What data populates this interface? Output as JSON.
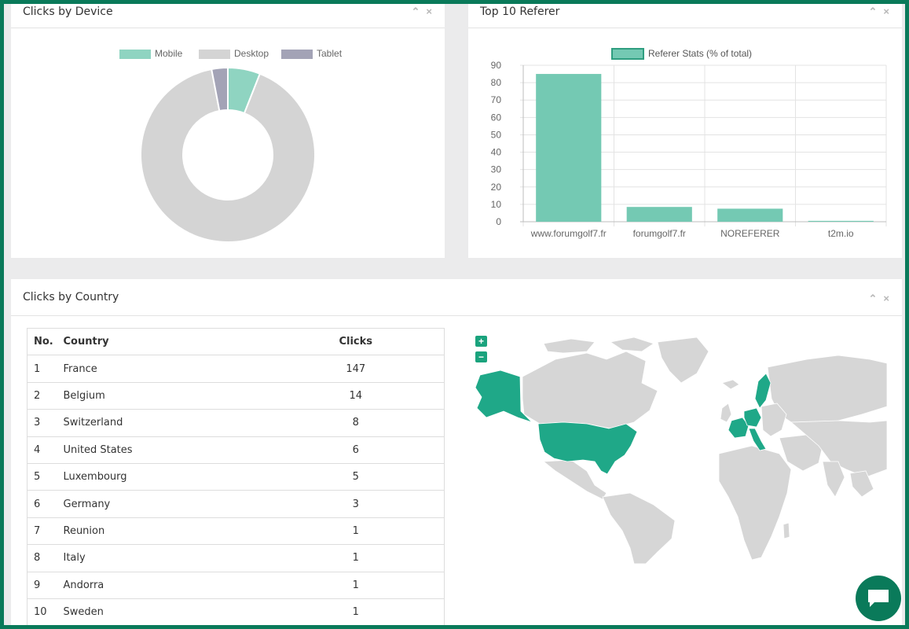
{
  "device_panel": {
    "title": "Clicks by Device",
    "chart_data": {
      "type": "pie",
      "title": "",
      "categories": [
        "Mobile",
        "Desktop",
        "Tablet"
      ],
      "values": [
        6,
        91,
        3
      ],
      "colors": [
        "#8fd4c1",
        "#d4d4d4",
        "#a3a3b6"
      ],
      "donut": true,
      "legend_position": "top"
    }
  },
  "referer_panel": {
    "title": "Top 10 Referer",
    "chart_data": {
      "type": "bar",
      "title": "",
      "categories": [
        "www.forumgolf7.fr",
        "forumgolf7.fr",
        "NOREFERER",
        "t2m.io"
      ],
      "series": [
        {
          "name": "Referer Stats (% of total)",
          "values": [
            85,
            8.5,
            7.5,
            0.5
          ]
        }
      ],
      "yticks": [
        "0",
        "10",
        "20",
        "30",
        "40",
        "50",
        "60",
        "70",
        "80",
        "90"
      ],
      "ylim": [
        0,
        90
      ],
      "xlabel": "",
      "ylabel": "",
      "grid": true,
      "legend_position": "top",
      "bar_color": "#74c9b3"
    }
  },
  "country_panel": {
    "title": "Clicks by Country",
    "table": {
      "headers": [
        "No.",
        "Country",
        "Clicks"
      ],
      "rows": [
        [
          "1",
          "France",
          "147"
        ],
        [
          "2",
          "Belgium",
          "14"
        ],
        [
          "3",
          "Switzerland",
          "8"
        ],
        [
          "4",
          "United States",
          "6"
        ],
        [
          "5",
          "Luxembourg",
          "5"
        ],
        [
          "6",
          "Germany",
          "3"
        ],
        [
          "7",
          "Reunion",
          "1"
        ],
        [
          "8",
          "Italy",
          "1"
        ],
        [
          "9",
          "Andorra",
          "1"
        ],
        [
          "10",
          "Sweden",
          "1"
        ]
      ]
    },
    "map": {
      "zoom_in": "+",
      "zoom_out": "−",
      "highlight_color": "#1fa888",
      "base_color": "#d6d6d6"
    }
  },
  "tools": {
    "collapse": "⌃",
    "close": "×"
  },
  "chat_icon": "chat-bubble-icon"
}
